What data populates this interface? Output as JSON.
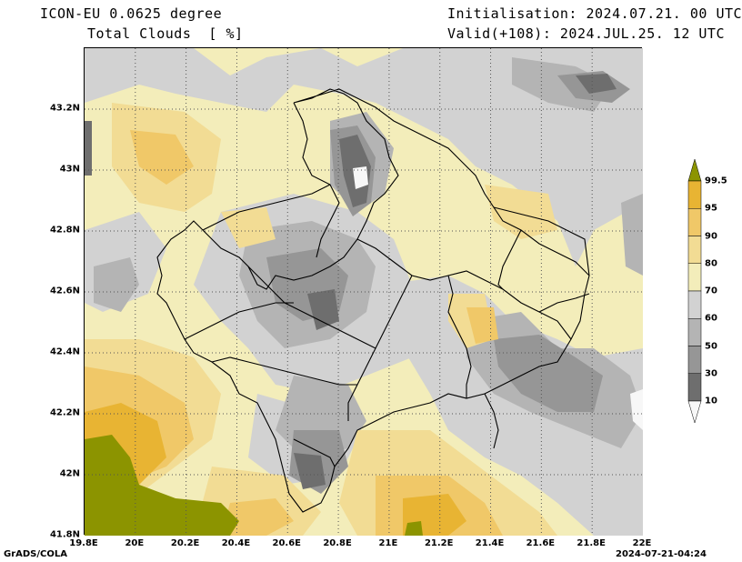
{
  "header": {
    "model": "ICON-EU 0.0625 degree",
    "variable": "Total Clouds  [ %]",
    "init": "Initialisation: 2024.07.21. 00 UTC",
    "valid": "Valid(+108): 2024.JUL.25. 12 UTC"
  },
  "footer": {
    "left": "GrADS/COLA",
    "right": "2024-07-21-04:24"
  },
  "axes": {
    "lat_labels": [
      "43.2N",
      "43N",
      "42.8N",
      "42.6N",
      "42.4N",
      "42.2N",
      "42N",
      "41.8N"
    ],
    "lat_values": [
      43.2,
      43.0,
      42.8,
      42.6,
      42.4,
      42.2,
      42.0,
      41.8
    ],
    "lon_labels": [
      "19.8E",
      "20E",
      "20.2E",
      "20.4E",
      "20.6E",
      "20.8E",
      "21E",
      "21.2E",
      "21.4E",
      "21.6E",
      "21.8E",
      "22E"
    ],
    "lon_values": [
      19.8,
      20.0,
      20.2,
      20.4,
      20.6,
      20.8,
      21.0,
      21.2,
      21.4,
      21.6,
      21.8,
      22.0
    ],
    "lat_range": [
      41.8,
      43.4
    ],
    "lon_range": [
      19.8,
      22.0
    ]
  },
  "colorbar": {
    "labels": [
      "99.5",
      "95",
      "90",
      "80",
      "70",
      "60",
      "50",
      "30",
      "10"
    ],
    "levels": [
      99.5,
      95,
      90,
      80,
      70,
      60,
      50,
      30,
      10
    ],
    "colors": [
      "#8c9400",
      "#e8b433",
      "#f0c868",
      "#f2dc94",
      "#f3edba",
      "#d2d2d2",
      "#b4b4b4",
      "#969696",
      "#6e6e6e",
      "#f7f7f7"
    ]
  }
}
